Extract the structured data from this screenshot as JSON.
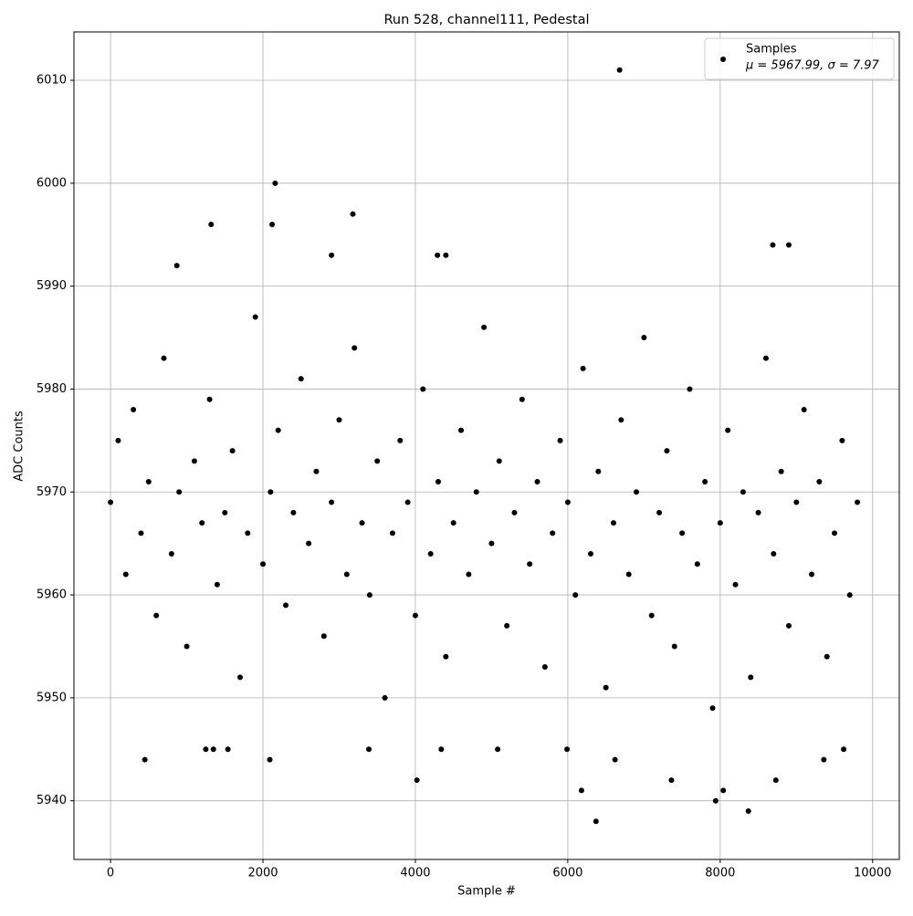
{
  "chart_data": {
    "type": "scatter",
    "title": "Run 528, channel111, Pedestal",
    "xlabel": "Sample #",
    "ylabel": "ADC Counts",
    "xlim": [
      -480,
      10350
    ],
    "ylim": [
      5934.3,
      6014.7
    ],
    "xticks": [
      0,
      2000,
      4000,
      6000,
      8000,
      10000
    ],
    "yticks": [
      5940,
      5950,
      5960,
      5970,
      5980,
      5990,
      6000,
      6010
    ],
    "grid": true,
    "legend": "upper right",
    "legend_note": "μ = 5967.99, σ = 7.97",
    "series": [
      {
        "name": "Samples",
        "color": "#000000",
        "x": [
          0,
          100,
          200,
          300,
          400,
          500,
          600,
          700,
          800,
          900,
          1000,
          1100,
          1200,
          1300,
          1400,
          1500,
          1600,
          1700,
          1800,
          1900,
          2000,
          2100,
          2200,
          2300,
          2400,
          2500,
          2600,
          2700,
          2800,
          2900,
          3000,
          3100,
          3200,
          3300,
          3400,
          3500,
          3600,
          3700,
          3800,
          3900,
          4000,
          4100,
          4200,
          4300,
          4400,
          4500,
          4600,
          4700,
          4800,
          4900,
          5000,
          5100,
          5200,
          5300,
          5400,
          5500,
          5600,
          5700,
          5800,
          5900,
          6000,
          6100,
          6200,
          6300,
          6400,
          6500,
          6600,
          6700,
          6800,
          6900,
          7000,
          7100,
          7200,
          7300,
          7400,
          7500,
          7600,
          7700,
          7800,
          7900,
          8000,
          8100,
          8200,
          8300,
          8400,
          8500,
          8600,
          8700,
          8800,
          8900,
          9000,
          9100,
          9200,
          9300,
          9400,
          9500,
          9600,
          9700,
          9800,
          6680,
          2160,
          1320,
          2120,
          3180,
          870,
          4290,
          4400,
          2900,
          8690,
          8900,
          6370,
          8370,
          7940,
          6180,
          8040,
          4020,
          7360,
          8730,
          450,
          2090,
          6620,
          9360,
          1250,
          1350,
          1540,
          3390,
          4340,
          5080,
          5990,
          9620
        ],
        "values": [
          5969,
          5975,
          5962,
          5978,
          5966,
          5971,
          5958,
          5983,
          5964,
          5970,
          5955,
          5973,
          5967,
          5979,
          5961,
          5968,
          5974,
          5952,
          5966,
          5987,
          5963,
          5970,
          5976,
          5959,
          5968,
          5981,
          5965,
          5972,
          5956,
          5969,
          5977,
          5962,
          5984,
          5967,
          5960,
          5973,
          5950,
          5966,
          5975,
          5969,
          5958,
          5980,
          5964,
          5971,
          5954,
          5967,
          5976,
          5962,
          5970,
          5986,
          5965,
          5973,
          5957,
          5968,
          5979,
          5963,
          5971,
          5953,
          5966,
          5975,
          5969,
          5960,
          5982,
          5964,
          5972,
          5951,
          5967,
          5977,
          5962,
          5970,
          5985,
          5958,
          5968,
          5974,
          5955,
          5966,
          5980,
          5963,
          5971,
          5949,
          5967,
          5976,
          5961,
          5970,
          5952,
          5968,
          5983,
          5964,
          5972,
          5957,
          5969,
          5978,
          5962,
          5971,
          5954,
          5966,
          5975,
          5960,
          5969,
          6011,
          6000,
          5996,
          5996,
          5997,
          5992,
          5993,
          5993,
          5993,
          5994,
          5994,
          5938,
          5939,
          5940,
          5941,
          5941,
          5942,
          5942,
          5942,
          5944,
          5944,
          5944,
          5944,
          5945,
          5945,
          5945,
          5945,
          5945,
          5945,
          5945,
          5945
        ]
      }
    ]
  }
}
